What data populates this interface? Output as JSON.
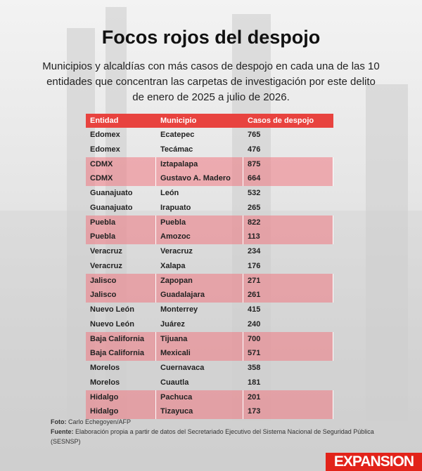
{
  "header": {
    "title": "Focos rojos del despojo",
    "subtitle": "Municipios y alcaldías con más casos de despojo en cada una de las 10 entidades que concentran las carpetas de investigación por este delito de enero de 2025 a julio de 2026."
  },
  "table": {
    "columns": [
      "Entidad",
      "Municipio",
      "Casos de despojo"
    ],
    "rows": [
      [
        "Edomex",
        "Ecatepec",
        765
      ],
      [
        "Edomex",
        "Tecámac",
        476
      ],
      [
        "CDMX",
        "Iztapalapa",
        875
      ],
      [
        "CDMX",
        "Gustavo A. Madero",
        664
      ],
      [
        "Guanajuato",
        "León",
        532
      ],
      [
        "Guanajuato",
        "Irapuato",
        265
      ],
      [
        "Puebla",
        "Puebla",
        822
      ],
      [
        "Puebla",
        "Amozoc",
        113
      ],
      [
        "Veracruz",
        "Veracruz",
        234
      ],
      [
        "Veracruz",
        "Xalapa",
        176
      ],
      [
        "Jalisco",
        "Zapopan",
        271
      ],
      [
        "Jalisco",
        "Guadalajara",
        261
      ],
      [
        "Nuevo León",
        "Monterrey",
        415
      ],
      [
        "Nuevo León",
        "Juárez",
        240
      ],
      [
        "Baja California",
        "Tijuana",
        700
      ],
      [
        "Baja California",
        "Mexicali",
        571
      ],
      [
        "Morelos",
        "Cuernavaca",
        358
      ],
      [
        "Morelos",
        "Cuautla",
        181
      ],
      [
        "Hidalgo",
        "Pachuca",
        201
      ],
      [
        "Hidalgo",
        "Tizayuca",
        173
      ]
    ]
  },
  "footer": {
    "photo": {
      "label": "Foto:",
      "text": "Carlo Echegoyen/AFP"
    },
    "source": {
      "label": "Fuente:",
      "text": "Elaboración propia a partir de datos del Secretariado Ejecutivo del Sistema Nacional de Seguridad Pública (SESNSP)"
    },
    "logo": "EXPANSION"
  }
}
